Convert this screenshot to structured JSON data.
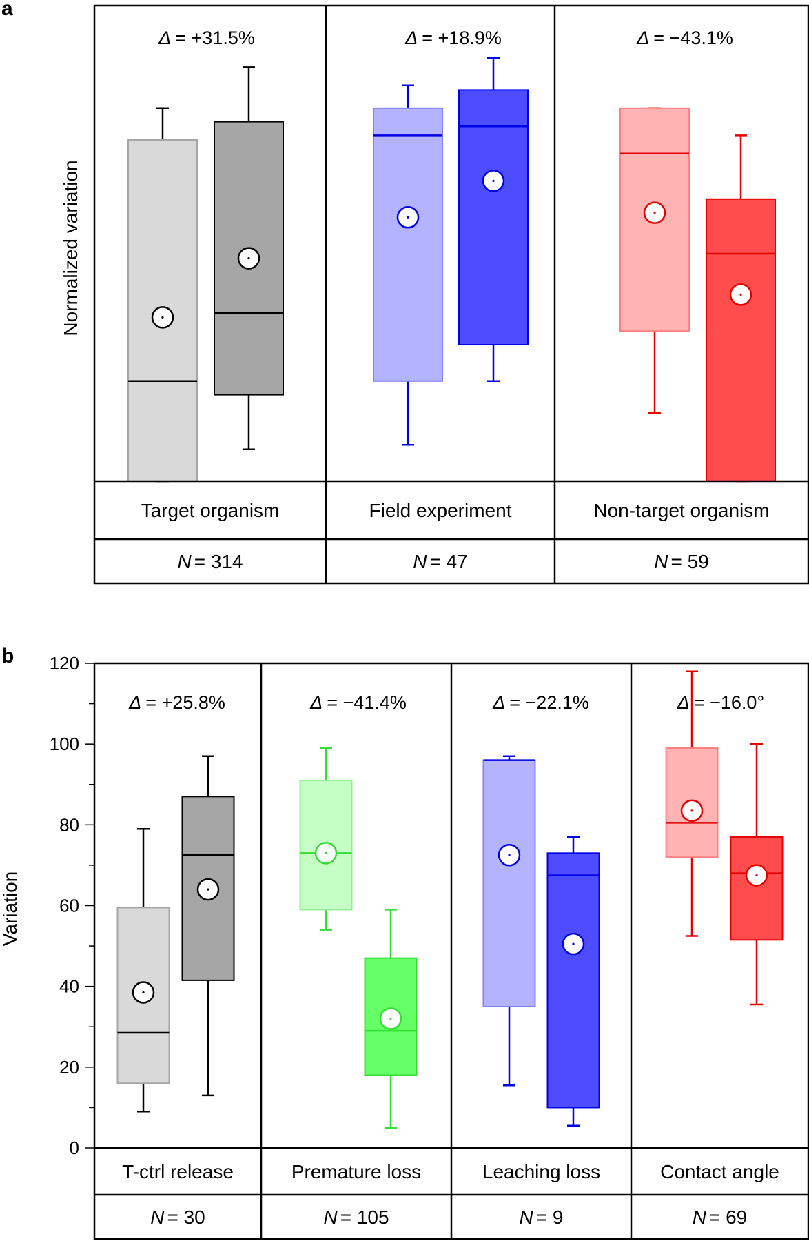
{
  "panel_a": {
    "label": "a",
    "ylabel": "Normalized variation"
  },
  "panel_b": {
    "label": "b",
    "ylabel": "Variation"
  },
  "chart_data": [
    {
      "type": "box",
      "panel": "a",
      "ylabel": "Normalized variation",
      "ylim": [
        0,
        100
      ],
      "yticks": [],
      "groups": [
        {
          "label": "Target organism",
          "n_label": "N = 314",
          "n_prefix": "N",
          "n_value": "= 314",
          "delta_prefix": "Δ",
          "delta_value": "= +31.5%",
          "color": "gray",
          "boxes": [
            {
              "whisker_low": 0,
              "q1": 0,
              "median": 22,
              "q3": 75,
              "whisker_high": 82,
              "mean": 36,
              "fill": "#d9d9d9",
              "stroke": "#a6a6a6",
              "line": "#000000"
            },
            {
              "whisker_low": 7,
              "q1": 19,
              "median": 37,
              "q3": 79,
              "whisker_high": 91,
              "mean": 49,
              "fill": "#a6a6a6",
              "stroke": "#000000",
              "line": "#000000"
            }
          ]
        },
        {
          "label": "Field experiment",
          "n_label": "N = 47",
          "n_prefix": "N",
          "n_value": "= 47",
          "delta_prefix": "Δ",
          "delta_value": "= +18.9%",
          "color": "blue",
          "boxes": [
            {
              "whisker_low": 8,
              "q1": 22,
              "median": 76,
              "q3": 82,
              "whisker_high": 87,
              "mean": 58,
              "fill": "#b3b3ff",
              "stroke": "#8080ff",
              "line": "#0000e6"
            },
            {
              "whisker_low": 22,
              "q1": 30,
              "median": 78,
              "q3": 86,
              "whisker_high": 93,
              "mean": 66,
              "fill": "#4d4dff",
              "stroke": "#0000e6",
              "line": "#0000e6"
            }
          ]
        },
        {
          "label": "Non-target organism",
          "n_label": "N = 59",
          "n_prefix": "N",
          "n_value": "= 59",
          "delta_prefix": "Δ",
          "delta_value": "= −43.1%",
          "color": "red",
          "boxes": [
            {
              "whisker_low": 15,
              "q1": 33,
              "median": 72,
              "q3": 82,
              "whisker_high": 82,
              "mean": 59,
              "fill": "#ffb3b3",
              "stroke": "#ff8080",
              "line": "#e60000"
            },
            {
              "whisker_low": 0,
              "q1": 0,
              "median": 50,
              "q3": 62,
              "whisker_high": 76,
              "mean": 41,
              "fill": "#ff4d4d",
              "stroke": "#e60000",
              "line": "#e60000"
            }
          ]
        }
      ]
    },
    {
      "type": "box",
      "panel": "b",
      "ylabel": "Variation",
      "ylim": [
        0,
        120
      ],
      "yticks": [
        0,
        20,
        40,
        60,
        80,
        100,
        120
      ],
      "ytick_labels": [
        "0",
        "20",
        "40",
        "60",
        "80",
        "100",
        "120"
      ],
      "groups": [
        {
          "label": "T-ctrl release",
          "n_label": "N = 30",
          "n_prefix": "N",
          "n_value": "= 30",
          "delta_prefix": "Δ",
          "delta_value": "= +25.8%",
          "color": "gray",
          "boxes": [
            {
              "whisker_low": 9,
              "q1": 16,
              "median": 28.5,
              "q3": 59.5,
              "whisker_high": 79,
              "mean": 38.5,
              "fill": "#d9d9d9",
              "stroke": "#a6a6a6",
              "line": "#000000"
            },
            {
              "whisker_low": 13,
              "q1": 41.5,
              "median": 72.5,
              "q3": 87,
              "whisker_high": 97,
              "mean": 64,
              "fill": "#a6a6a6",
              "stroke": "#000000",
              "line": "#000000"
            }
          ]
        },
        {
          "label": "Premature loss",
          "n_label": "N = 105",
          "n_prefix": "N",
          "n_value": "= 105",
          "delta_prefix": "Δ",
          "delta_value": "= −41.4%",
          "color": "green",
          "boxes": [
            {
              "whisker_low": 54,
              "q1": 59,
              "median": 73,
              "q3": 91,
              "whisker_high": 99,
              "mean": 73,
              "fill": "#c6ffc6",
              "stroke": "#8ff08f",
              "line": "#33dd33"
            },
            {
              "whisker_low": 5,
              "q1": 18,
              "median": 29,
              "q3": 47,
              "whisker_high": 59,
              "mean": 32,
              "fill": "#66ff66",
              "stroke": "#33dd33",
              "line": "#33dd33"
            }
          ]
        },
        {
          "label": "Leaching loss",
          "n_label": "N = 9",
          "n_prefix": "N",
          "n_value": "= 9",
          "delta_prefix": "Δ",
          "delta_value": "= −22.1%",
          "color": "blue",
          "boxes": [
            {
              "whisker_low": 15.5,
              "q1": 35,
              "median": 96,
              "q3": 96,
              "whisker_high": 97,
              "mean": 72.5,
              "fill": "#b3b3ff",
              "stroke": "#8080ff",
              "line": "#0000e6"
            },
            {
              "whisker_low": 5.5,
              "q1": 10,
              "median": 67.5,
              "q3": 73,
              "whisker_high": 77,
              "mean": 50.5,
              "fill": "#4d4dff",
              "stroke": "#0000e6",
              "line": "#0000e6"
            }
          ]
        },
        {
          "label": "Contact angle",
          "n_label": "N = 69",
          "n_prefix": "N",
          "n_value": "= 69",
          "delta_prefix": "Δ",
          "delta_value": "= −16.0°",
          "color": "red",
          "boxes": [
            {
              "whisker_low": 52.5,
              "q1": 72,
              "median": 80.5,
              "q3": 99,
              "whisker_high": 118,
              "mean": 83.5,
              "fill": "#ffb3b3",
              "stroke": "#ff8080",
              "line": "#e60000"
            },
            {
              "whisker_low": 35.5,
              "q1": 51.5,
              "median": 68,
              "q3": 77,
              "whisker_high": 100,
              "mean": 67.5,
              "fill": "#ff4d4d",
              "stroke": "#e60000",
              "line": "#e60000"
            }
          ]
        }
      ]
    }
  ]
}
